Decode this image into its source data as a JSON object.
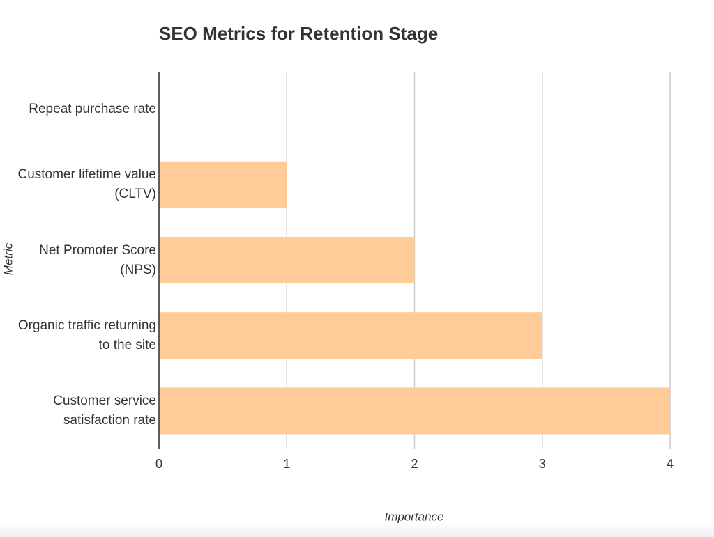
{
  "chart_data": {
    "type": "bar",
    "orientation": "horizontal",
    "title": "SEO Metrics for Retention Stage",
    "x_label": "Importance",
    "y_label": "Metric",
    "categories": [
      "Repeat purchase rate",
      "Customer lifetime value (CLTV)",
      "Net Promoter Score (NPS)",
      "Organic traffic returning to the site",
      "Customer service satisfaction rate"
    ],
    "values": [
      0,
      1,
      2,
      3,
      4
    ],
    "color": "#ffcc99",
    "xlim": [
      0,
      4
    ],
    "xticks": [
      0,
      1,
      2,
      3,
      4
    ],
    "grid": true
  }
}
